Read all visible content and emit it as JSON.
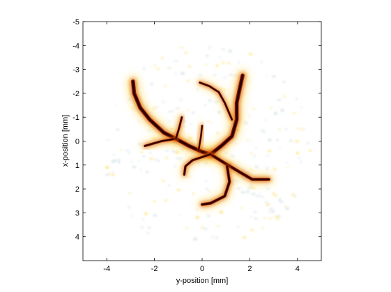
{
  "chart_data": {
    "type": "heatmap",
    "title": "",
    "xlabel": "y-position [mm]",
    "ylabel": "x-position [mm]",
    "xlim": [
      -5,
      5
    ],
    "ylim": [
      -5,
      5
    ],
    "y_axis_reversed": true,
    "x_ticks": [
      -4,
      -2,
      0,
      2,
      4
    ],
    "x_tick_labels": [
      "-4",
      "-2",
      "0",
      "2",
      "4"
    ],
    "y_ticks": [
      -5,
      -4,
      -3,
      -2,
      -1,
      0,
      1,
      2,
      3,
      4
    ],
    "y_tick_labels": [
      "-5",
      "-4",
      "-3",
      "-2",
      "-1",
      "0",
      "1",
      "2",
      "3",
      "4"
    ],
    "grid": false,
    "colors": {
      "vessel_core": "#2a0000",
      "vessel_mid": "#8b1a00",
      "vessel_edge": "#d4580a",
      "halo": "#ffd84a",
      "background": "#ffffff",
      "speckle": "#c8d6de"
    },
    "vessel_branches": [
      {
        "name": "trunk-left",
        "points": [
          [
            -2.9,
            -2.5
          ],
          [
            -2.85,
            -2.0
          ],
          [
            -2.6,
            -1.4
          ],
          [
            -2.2,
            -0.9
          ],
          [
            -1.6,
            -0.35
          ],
          [
            -1.1,
            -0.1
          ],
          [
            -0.55,
            0.2
          ],
          [
            0.0,
            0.45
          ],
          [
            0.35,
            0.55
          ]
        ],
        "width": 0.16
      },
      {
        "name": "branch-left-down",
        "points": [
          [
            -1.1,
            -0.1
          ],
          [
            -1.7,
            0.0
          ],
          [
            -2.4,
            0.2
          ]
        ],
        "width": 0.1
      },
      {
        "name": "branch-mid-up",
        "points": [
          [
            -1.1,
            -0.1
          ],
          [
            -0.95,
            -0.6
          ],
          [
            -0.85,
            -1.0
          ]
        ],
        "width": 0.09
      },
      {
        "name": "branch-up",
        "points": [
          [
            -0.15,
            0.4
          ],
          [
            -0.05,
            -0.2
          ],
          [
            0.0,
            -0.65
          ]
        ],
        "width": 0.08
      },
      {
        "name": "trunk-right",
        "points": [
          [
            0.35,
            0.55
          ],
          [
            0.8,
            0.2
          ],
          [
            1.25,
            -0.2
          ],
          [
            1.45,
            -0.9
          ],
          [
            1.45,
            -1.6
          ],
          [
            1.6,
            -2.3
          ],
          [
            1.7,
            -2.75
          ]
        ],
        "width": 0.16
      },
      {
        "name": "branch-right-up",
        "points": [
          [
            1.25,
            -0.9
          ],
          [
            0.95,
            -1.6
          ],
          [
            0.7,
            -2.05
          ],
          [
            0.3,
            -2.3
          ],
          [
            -0.1,
            -2.45
          ]
        ],
        "width": 0.09
      },
      {
        "name": "branch-right-down",
        "points": [
          [
            0.35,
            0.55
          ],
          [
            1.0,
            0.95
          ],
          [
            1.5,
            1.25
          ],
          [
            2.1,
            1.6
          ],
          [
            2.8,
            1.6
          ]
        ],
        "width": 0.13
      },
      {
        "name": "branch-down",
        "points": [
          [
            1.05,
            1.05
          ],
          [
            1.15,
            1.7
          ],
          [
            0.95,
            2.3
          ],
          [
            0.35,
            2.6
          ],
          [
            0.0,
            2.65
          ]
        ],
        "width": 0.12
      },
      {
        "name": "branch-left-lower",
        "points": [
          [
            0.35,
            0.55
          ],
          [
            -0.4,
            0.8
          ],
          [
            -0.7,
            1.05
          ],
          [
            -0.75,
            1.4
          ]
        ],
        "width": 0.1
      }
    ]
  }
}
